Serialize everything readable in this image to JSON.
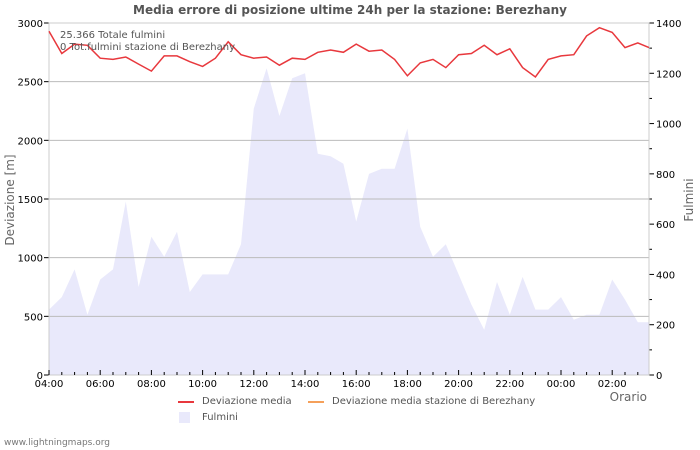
{
  "chart_data": {
    "type": "line",
    "title": "Media errore di posizione ultime 24h per la stazione: Berezhany",
    "xlabel": "Orario",
    "ylabel": "Deviazione  [m]",
    "ylabel_right": "Fulmini",
    "ylim": [
      0,
      3000
    ],
    "ylim_right": [
      0,
      1400
    ],
    "yticks": [
      "0",
      "500",
      "1000",
      "1500",
      "2000",
      "2500",
      "3000"
    ],
    "yticks_right": [
      "0",
      "200",
      "400",
      "600",
      "800",
      "1000",
      "1200",
      "1400"
    ],
    "xticks": [
      "04:00",
      "06:00",
      "08:00",
      "10:00",
      "12:00",
      "14:00",
      "16:00",
      "18:00",
      "20:00",
      "22:00",
      "00:00",
      "02:00"
    ],
    "grid": true,
    "legend_position": "bottom",
    "annotations": [
      "25.366 Totale fulmini",
      "0 Tot.fulmini stazione di Berezhany"
    ],
    "x": [
      "04:00",
      "04:30",
      "05:00",
      "05:30",
      "06:00",
      "06:30",
      "07:00",
      "07:30",
      "08:00",
      "08:30",
      "09:00",
      "09:30",
      "10:00",
      "10:30",
      "11:00",
      "11:30",
      "12:00",
      "12:30",
      "13:00",
      "13:30",
      "14:00",
      "14:30",
      "15:00",
      "15:30",
      "16:00",
      "16:30",
      "17:00",
      "17:30",
      "18:00",
      "18:30",
      "19:00",
      "19:30",
      "20:00",
      "20:30",
      "21:00",
      "21:30",
      "22:00",
      "22:30",
      "23:00",
      "23:30",
      "00:00",
      "00:30",
      "01:00",
      "01:30",
      "02:00",
      "02:30",
      "03:00",
      "03:25"
    ],
    "series": [
      {
        "name": "Deviazione media",
        "axis": "left",
        "color": "#e8383d",
        "values": [
          2930,
          2740,
          2820,
          2810,
          2700,
          2690,
          2710,
          2650,
          2590,
          2720,
          2720,
          2670,
          2630,
          2700,
          2840,
          2730,
          2700,
          2710,
          2640,
          2700,
          2690,
          2750,
          2770,
          2750,
          2820,
          2760,
          2770,
          2690,
          2550,
          2660,
          2690,
          2620,
          2730,
          2740,
          2810,
          2730,
          2780,
          2620,
          2540,
          2690,
          2720,
          2730,
          2890,
          2960,
          2920,
          2790,
          2830,
          2790
        ]
      },
      {
        "name": "Deviazione media stazione di Berezhany",
        "axis": "left",
        "color": "#f5a05a",
        "values": []
      },
      {
        "name": "Fulmini",
        "axis": "right",
        "type": "area",
        "color": "#e9e9fb",
        "values": [
          260,
          310,
          420,
          240,
          380,
          420,
          690,
          350,
          550,
          470,
          570,
          330,
          400,
          400,
          400,
          520,
          1060,
          1220,
          1030,
          1180,
          1200,
          880,
          870,
          840,
          610,
          800,
          820,
          820,
          980,
          590,
          470,
          520,
          400,
          280,
          180,
          370,
          240,
          390,
          260,
          260,
          310,
          220,
          240,
          240,
          380,
          300,
          210,
          210
        ]
      }
    ]
  },
  "legend": {
    "dev_media": "Deviazione media",
    "dev_station": "Deviazione media stazione di Berezhany",
    "fulmini": "Fulmini"
  },
  "footer": "www.lightningmaps.org"
}
